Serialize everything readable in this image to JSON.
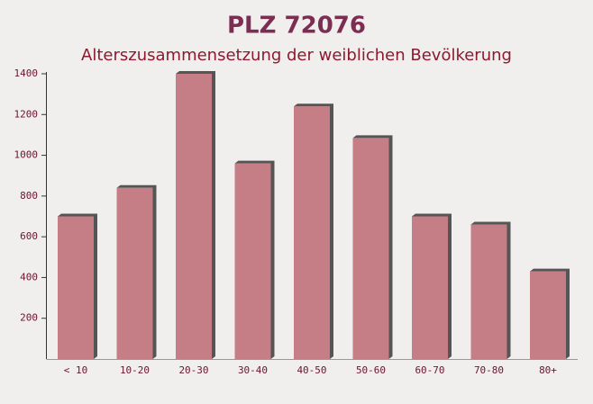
{
  "chart_data": {
    "type": "bar",
    "title": "PLZ 72076",
    "subtitle": "Alterszusammensetzung der weiblichen Bevölkerung",
    "categories": [
      "< 10",
      "10-20",
      "20-30",
      "30-40",
      "40-50",
      "50-60",
      "60-70",
      "70-80",
      "80+"
    ],
    "values": [
      700,
      840,
      1400,
      960,
      1240,
      1085,
      700,
      660,
      430
    ],
    "color": "#c0707a",
    "ylim": [
      0,
      1400
    ],
    "yticks": [
      200,
      400,
      600,
      800,
      1000,
      1200,
      1400
    ],
    "grid": false
  }
}
